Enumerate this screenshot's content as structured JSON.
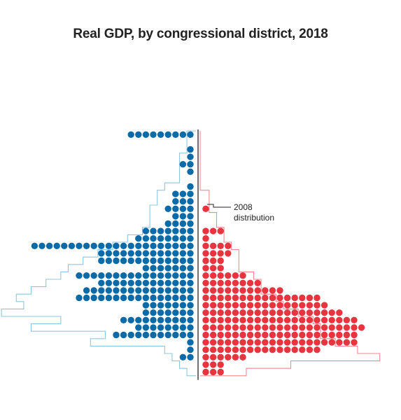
{
  "chart_data": {
    "type": "dot-histogram",
    "title": "Real GDP, by congressional district, 2018",
    "annotation": "2008 distribution",
    "colors": {
      "left_dots": "#0b6aa8",
      "right_dots": "#e8343f",
      "left_outline": "#8ec7e2",
      "right_outline": "#f08a8f",
      "axis": "#222222"
    },
    "rows": 33,
    "series": [
      {
        "side": "left",
        "dot_counts": [
          9,
          0,
          1,
          1,
          2,
          1,
          0,
          1,
          3,
          3,
          4,
          3,
          4,
          7,
          8,
          22,
          13,
          13,
          7,
          16,
          13,
          15,
          16,
          7,
          7,
          10,
          8,
          11,
          1,
          1,
          2,
          0,
          0
        ],
        "outline_2008": [
          1,
          1,
          1,
          2,
          2,
          2,
          2,
          4,
          5,
          5,
          6,
          6,
          6,
          7,
          9,
          11,
          13,
          15,
          17,
          18,
          20,
          22,
          24,
          23,
          26,
          18,
          22,
          12,
          14,
          4,
          3,
          2,
          1
        ]
      },
      {
        "side": "right",
        "dot_counts": [
          0,
          0,
          0,
          0,
          0,
          0,
          0,
          0,
          0,
          0,
          1,
          0,
          0,
          3,
          1,
          4,
          4,
          3,
          3,
          6,
          8,
          11,
          16,
          17,
          19,
          21,
          22,
          21,
          21,
          16,
          6,
          3,
          3
        ],
        "outline_2008": [
          0,
          0,
          0,
          0,
          0,
          0,
          0,
          0,
          1,
          1,
          1,
          2,
          2,
          3,
          3,
          4,
          5,
          5,
          5,
          7,
          8,
          8,
          10,
          11,
          13,
          15,
          16,
          16,
          18,
          21,
          24,
          12,
          6
        ]
      }
    ]
  }
}
